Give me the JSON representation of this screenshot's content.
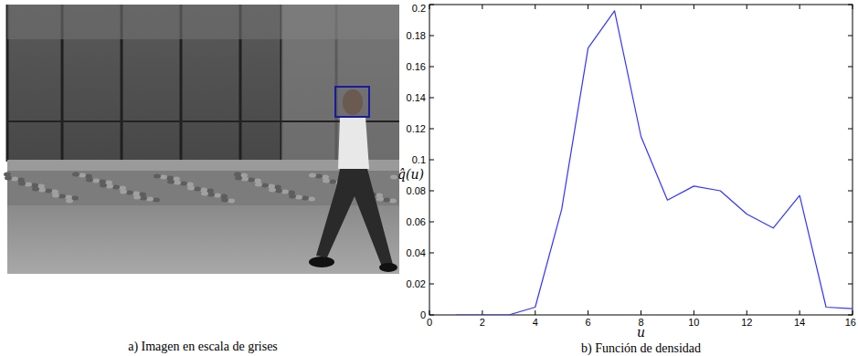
{
  "chart_data": {
    "type": "line",
    "title": "b) Función de densidad",
    "x_label": "u",
    "y_label": "q̂(u)",
    "x": [
      1,
      2,
      3,
      4,
      5,
      6,
      7,
      8,
      9,
      10,
      11,
      12,
      13,
      14,
      15,
      16
    ],
    "values": [
      0,
      0,
      0,
      0.005,
      0.068,
      0.172,
      0.196,
      0.115,
      0.074,
      0.083,
      0.08,
      0.065,
      0.056,
      0.077,
      0.005,
      0.004
    ],
    "color": "#3333ff",
    "xlim": [
      0,
      16
    ],
    "xticks": [
      0,
      2,
      4,
      6,
      8,
      10,
      12,
      14,
      16
    ],
    "ylim": [
      0,
      0.2
    ],
    "yticks": [
      0,
      0.02,
      0.04,
      0.06,
      0.08,
      0.1,
      0.12,
      0.14,
      0.16,
      0.18,
      0.2
    ],
    "grid": false
  },
  "image": {
    "caption": "a) Imagen en escala de grises"
  }
}
